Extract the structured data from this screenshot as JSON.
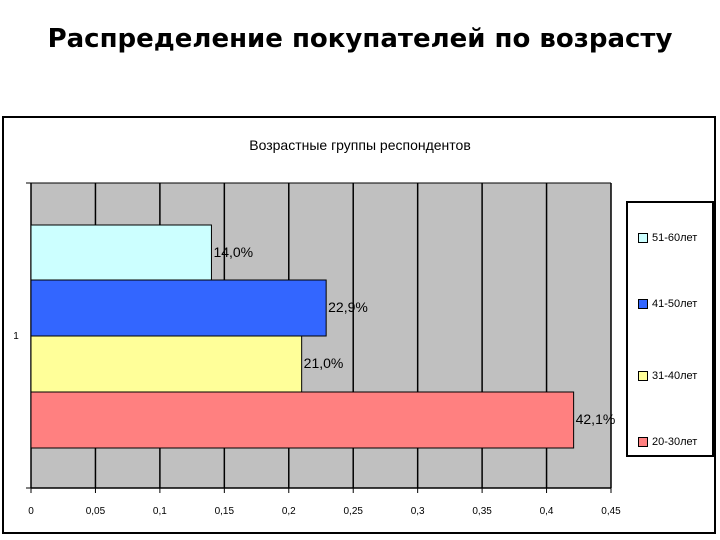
{
  "slide": {
    "title": "Распределение покупателей по возрасту"
  },
  "chart_data": {
    "type": "bar",
    "orientation": "horizontal",
    "title": "Возрастные группы респондентов",
    "categories": [
      "1"
    ],
    "series": [
      {
        "name": "51-60лет",
        "values": [
          0.14
        ],
        "label": "14,0%",
        "color": "#ccffff"
      },
      {
        "name": "41-50лет",
        "values": [
          0.229
        ],
        "label": "22,9%",
        "color": "#3366ff"
      },
      {
        "name": "31-40лет",
        "values": [
          0.21
        ],
        "label": "21,0%",
        "color": "#ffff99"
      },
      {
        "name": "20-30лет",
        "values": [
          0.421
        ],
        "label": "42,1%",
        "color": "#ff8080"
      }
    ],
    "xlim": [
      0,
      0.45
    ],
    "xticks": [
      "0",
      "0,05",
      "0,1",
      "0,15",
      "0,2",
      "0,25",
      "0,3",
      "0,35",
      "0,4",
      "0,45"
    ],
    "grid": true,
    "plot_background": "#c0c0c0",
    "legend_position": "right"
  }
}
